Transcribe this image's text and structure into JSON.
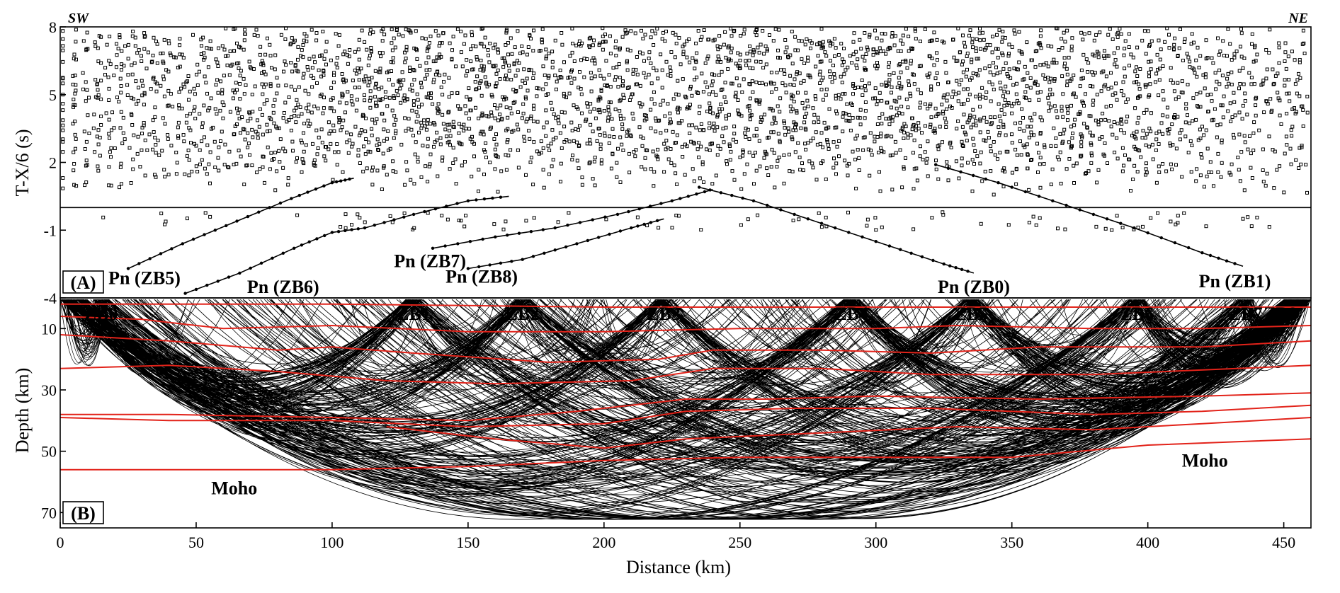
{
  "figure": {
    "dir_left": "SW",
    "dir_right": "NE",
    "panel_a_label": "(A)",
    "panel_b_label": "(B)",
    "xlabel": "Distance (km)",
    "ylabel_a": "T-X/6 (s)",
    "ylabel_b": "Depth (km)",
    "moho_label": "Moho"
  },
  "chart_data": [
    {
      "type": "scatter",
      "panel": "A",
      "xlabel": "",
      "ylabel": "T-X/6 (s)",
      "xlim": [
        0,
        460
      ],
      "ylim": [
        -4,
        8
      ],
      "yticks": [
        "8",
        "5",
        "2",
        "-1",
        "-4"
      ],
      "ytick_values": [
        8,
        5,
        2,
        -1,
        -4
      ],
      "reference_line_y": 0,
      "annotations": [
        {
          "text": "Pn (ZB5)",
          "x": 31,
          "y": -3.1
        },
        {
          "text": "Pn (ZB6)",
          "x": 82,
          "y": -3.5
        },
        {
          "text": "Pn (ZB7)",
          "x": 136,
          "y": -2.35
        },
        {
          "text": "Pn (ZB8)",
          "x": 155,
          "y": -3.05
        },
        {
          "text": "Pn (ZB0)",
          "x": 336,
          "y": -3.5
        },
        {
          "text": "Pn (ZB1)",
          "x": 432,
          "y": -3.25
        }
      ],
      "series": [
        {
          "name": "Pn (ZB5)",
          "x": [
            25,
            45,
            65,
            85,
            100,
            108
          ],
          "y": [
            -2.7,
            -1.6,
            -0.6,
            0.4,
            1.1,
            1.3
          ]
        },
        {
          "name": "Pn (ZB6)",
          "x": [
            46,
            66,
            86,
            100,
            112,
            130,
            150,
            165
          ],
          "y": [
            -3.8,
            -2.9,
            -1.8,
            -1.1,
            -0.9,
            -0.3,
            0.3,
            0.5
          ]
        },
        {
          "name": "Pn (ZB7)",
          "x": [
            137,
            160,
            182,
            205,
            225,
            240
          ],
          "y": [
            -1.8,
            -1.3,
            -0.9,
            -0.3,
            0.3,
            0.8
          ]
        },
        {
          "name": "Pn (ZB8)",
          "x": [
            150,
            170,
            190,
            210,
            222
          ],
          "y": [
            -2.7,
            -2.3,
            -1.6,
            -0.9,
            -0.5
          ]
        },
        {
          "name": "Pn (ZB0)",
          "x": [
            235,
            255,
            280,
            305,
            325,
            336
          ],
          "y": [
            0.9,
            0.3,
            -0.7,
            -1.7,
            -2.5,
            -2.9
          ]
        },
        {
          "name": "Pn (ZB1)",
          "x": [
            322,
            345,
            370,
            395,
            420,
            435
          ],
          "y": [
            1.9,
            1.1,
            0.1,
            -0.9,
            -2.0,
            -2.6
          ]
        }
      ]
    },
    {
      "type": "line",
      "panel": "B",
      "xlabel": "Distance (km)",
      "ylabel": "Depth (km)",
      "xlim": [
        0,
        460
      ],
      "ylim": [
        0,
        75
      ],
      "xticks": [
        "0",
        "50",
        "100",
        "150",
        "200",
        "250",
        "300",
        "350",
        "400",
        "450"
      ],
      "xtick_values": [
        0,
        50,
        100,
        150,
        200,
        250,
        300,
        350,
        400,
        450
      ],
      "yticks": [
        "10",
        "30",
        "50",
        "70"
      ],
      "ytick_values": [
        10,
        30,
        50,
        70
      ],
      "stations": [
        {
          "name": "ZB0",
          "x": 15
        },
        {
          "name": "ZB1",
          "x": 130
        },
        {
          "name": "ZB2",
          "x": 170
        },
        {
          "name": "ZB3",
          "x": 222
        },
        {
          "name": "ZB4",
          "x": 291
        },
        {
          "name": "ZB5",
          "x": 335
        },
        {
          "name": "ZB6",
          "x": 396
        },
        {
          "name": "ZB7",
          "x": 436
        },
        {
          "name": "ZB8",
          "x": 455
        }
      ],
      "annotations": [
        {
          "text": "Moho",
          "x": 64,
          "y": 62
        },
        {
          "text": "Moho",
          "x": 421,
          "y": 53
        }
      ],
      "series": [
        {
          "x": [
            0,
            100,
            200,
            300,
            400,
            460
          ],
          "y": [
            2,
            2,
            3,
            3,
            3,
            3
          ]
        },
        {
          "x": [
            0,
            30,
            60,
            100,
            150,
            200,
            250,
            300,
            330,
            380,
            420,
            460
          ],
          "y": [
            6,
            7,
            10,
            9,
            11,
            11,
            10,
            10,
            9,
            10,
            10,
            9
          ]
        },
        {
          "x": [
            0,
            40,
            80,
            100,
            130,
            180,
            220,
            240,
            280,
            320,
            360,
            420,
            460
          ],
          "y": [
            12,
            14,
            17,
            16,
            18,
            21,
            20,
            17,
            17,
            18,
            16,
            16,
            14
          ]
        },
        {
          "x": [
            0,
            40,
            80,
            120,
            160,
            210,
            240,
            280,
            320,
            380,
            460
          ],
          "y": [
            23,
            22,
            24,
            27,
            28,
            27,
            23,
            23,
            25,
            25,
            22
          ]
        },
        {
          "x": [
            0,
            40,
            100,
            150,
            190,
            230,
            260,
            300,
            360,
            420,
            460
          ],
          "y": [
            38,
            38,
            39,
            40,
            37,
            33,
            33,
            32,
            33,
            32,
            31
          ]
        },
        {
          "x": [
            0,
            40,
            100,
            150,
            200,
            230,
            270,
            320,
            380,
            420,
            460
          ],
          "y": [
            39,
            40,
            40,
            42,
            41,
            37,
            36,
            36,
            38,
            37,
            35
          ]
        },
        {
          "x": [
            120,
            160,
            200,
            230,
            280,
            330,
            380,
            420,
            460
          ],
          "y": [
            42,
            46,
            49,
            46,
            44,
            42,
            43,
            41,
            39
          ]
        },
        {
          "x": [
            0,
            50,
            100,
            150,
            200,
            250,
            300,
            350,
            400,
            460
          ],
          "y": [
            56,
            56,
            56,
            55,
            53,
            52,
            52,
            52,
            48,
            46
          ]
        }
      ]
    }
  ]
}
